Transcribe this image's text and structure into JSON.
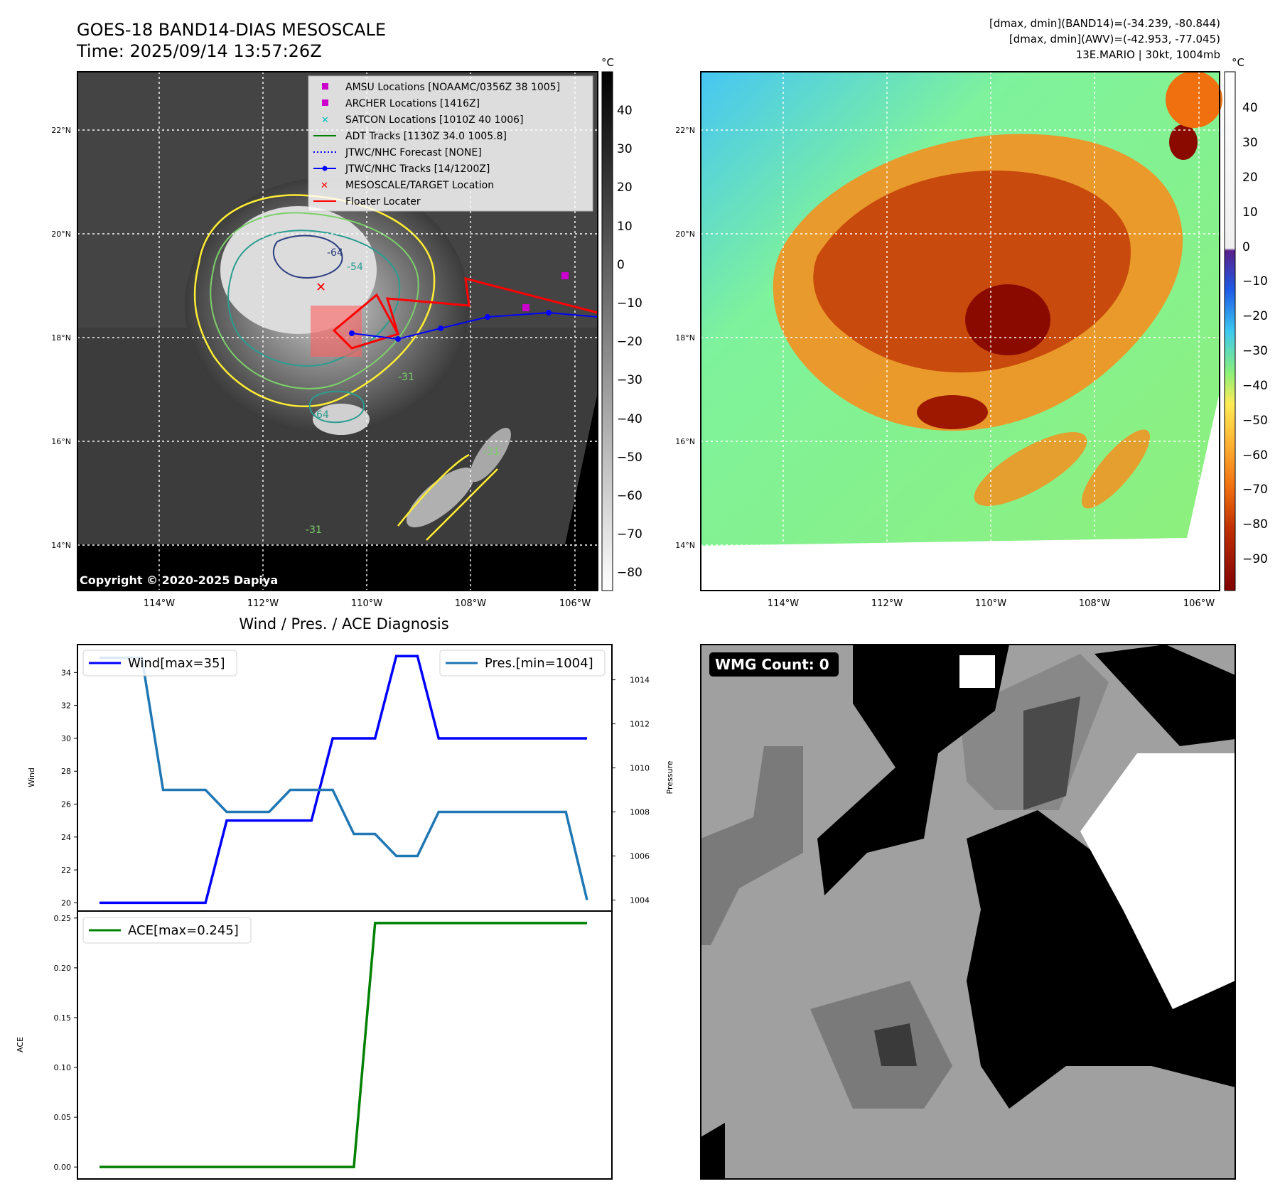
{
  "header": {
    "title": "GOES-18 BAND14-DIAS MESOSCALE",
    "time": "Time: 2025/09/14 13:57:26Z",
    "stats_line1": "[dmax, dmin](BAND14)=(-34.239, -80.844)",
    "stats_line2": "[dmax, dmin](AWV)=(-42.953, -77.045)",
    "stats_line3": "13E.MARIO | 30kt, 1004mb"
  },
  "colors": {
    "wind": "#0000ff",
    "pressure": "#1f77b4",
    "ace": "#008000",
    "contour_yellow": "#ffee33",
    "contour_green": "#7ccf6a",
    "contour_teal": "#2a9d8f",
    "contour_navy": "#2c3e80"
  },
  "map_ir": {
    "unit": "°C",
    "colorbar_ticks": [
      "40",
      "30",
      "20",
      "10",
      "0",
      "−10",
      "−20",
      "−30",
      "−40",
      "−50",
      "−60",
      "−70",
      "−80"
    ],
    "lat_labels": [
      "22°N",
      "20°N",
      "18°N",
      "16°N",
      "14°N"
    ],
    "lon_labels": [
      "114°W",
      "112°W",
      "110°W",
      "108°W",
      "106°W"
    ],
    "contour_labels": [
      "-54",
      "-64",
      "-64",
      "-31",
      "-31",
      "-31"
    ],
    "copyright": "Copyright © 2020-2025 Dapiya",
    "legend": [
      {
        "label": "AMSU Locations [NOAAMC/0356Z 38 1005]",
        "marker": "square",
        "color": "#cc00cc"
      },
      {
        "label": "ARCHER Locations [1416Z]",
        "marker": "square",
        "color": "#cc00cc"
      },
      {
        "label": "SATCON Locations [1010Z 40 1006]",
        "marker": "x",
        "color": "#00bfbf"
      },
      {
        "label": "ADT Tracks [1130Z 34.0 1005.8]",
        "marker": "line",
        "color": "#008000"
      },
      {
        "label": "JTWC/NHC Forecast [NONE]",
        "marker": "dotted",
        "color": "#0000ff"
      },
      {
        "label": "JTWC/NHC Tracks [14/1200Z]",
        "marker": "dotline",
        "color": "#0000ff"
      },
      {
        "label": "MESOSCALE/TARGET Location",
        "marker": "x",
        "color": "#ff0000"
      },
      {
        "label": "Floater Locater",
        "marker": "line",
        "color": "#ff0000"
      }
    ]
  },
  "map_awv": {
    "unit": "°C",
    "colorbar_ticks": [
      "40",
      "30",
      "20",
      "10",
      "0",
      "−10",
      "−20",
      "−30",
      "−40",
      "−50",
      "−60",
      "−70",
      "−80",
      "−90"
    ],
    "lat_labels": [
      "22°N",
      "20°N",
      "18°N",
      "16°N",
      "14°N"
    ],
    "lon_labels": [
      "114°W",
      "112°W",
      "110°W",
      "108°W",
      "106°W"
    ]
  },
  "wmg": {
    "label": "WMG Count: 0"
  },
  "diag_title": "Wind / Pres. / ACE Diagnosis",
  "chart_data": [
    {
      "type": "line",
      "x": [
        0,
        1,
        2,
        3,
        4,
        5,
        6,
        7,
        8,
        9,
        10,
        11,
        12,
        13,
        14,
        15,
        16,
        17,
        18,
        19,
        20,
        21,
        22,
        23
      ],
      "series": [
        {
          "name": "Wind[max=35]",
          "axis": "left",
          "values": [
            20,
            20,
            20,
            20,
            20,
            20,
            25,
            25,
            25,
            25,
            25,
            30,
            30,
            30,
            35,
            35,
            30,
            30,
            30,
            30,
            30,
            30,
            30,
            30
          ]
        },
        {
          "name": "Pres.[min=1004]",
          "axis": "right",
          "values": [
            1015,
            1015,
            1015,
            1009,
            1009,
            1009,
            1008,
            1008,
            1008,
            1009,
            1009,
            1009,
            1007,
            1007,
            1006,
            1006,
            1008,
            1008,
            1008,
            1008,
            1008,
            1008,
            1008,
            1004
          ]
        }
      ],
      "ylabel": "Wind",
      "ylim": [
        19.5,
        35.7
      ],
      "yticks": [
        "34",
        "32",
        "30",
        "28",
        "26",
        "24",
        "22",
        "20"
      ],
      "ylabel_right": "Pressure",
      "ylim_right": [
        1003.5,
        1015.6
      ],
      "yticks_right": [
        "1014",
        "1012",
        "1010",
        "1008",
        "1006",
        "1004"
      ],
      "legend_left": "Wind[max=35]",
      "legend_right": "Pres.[min=1004]",
      "grid": false
    },
    {
      "type": "line",
      "x": [
        0,
        1,
        2,
        3,
        4,
        5,
        6,
        7,
        8,
        9,
        10,
        11,
        12,
        13,
        14,
        15,
        16,
        17,
        18,
        19,
        20,
        21,
        22,
        23
      ],
      "series": [
        {
          "name": "ACE[max=0.245]",
          "values": [
            0,
            0,
            0,
            0,
            0,
            0,
            0,
            0,
            0,
            0,
            0,
            0,
            0,
            0.245,
            0.245,
            0.245,
            0.245,
            0.245,
            0.245,
            0.245,
            0.245,
            0.245,
            0.245,
            0.245
          ]
        }
      ],
      "ylabel": "ACE",
      "ylim": [
        -0.012,
        0.257
      ],
      "yticks": [
        "0.25",
        "0.20",
        "0.15",
        "0.10",
        "0.05",
        "0.00"
      ],
      "legend": "ACE[max=0.245]",
      "grid": false
    }
  ]
}
